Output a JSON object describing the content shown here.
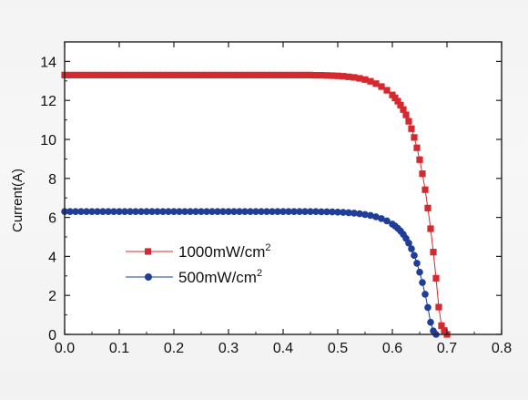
{
  "chart_data": {
    "type": "scatter",
    "title": "",
    "xlabel": "",
    "ylabel": "Current(A)",
    "xlim": [
      0.0,
      0.8
    ],
    "ylim": [
      0,
      15
    ],
    "xticks": [
      "0.0",
      "0.1",
      "0.2",
      "0.3",
      "0.4",
      "0.5",
      "0.6",
      "0.7",
      "0.8"
    ],
    "yticks": [
      "0",
      "2",
      "4",
      "6",
      "8",
      "10",
      "12",
      "14"
    ],
    "grid": false,
    "legend_position": "lower-left",
    "series": [
      {
        "name": "1000mW/cm",
        "name_sup": "2",
        "color": "#d42a2f",
        "marker": "square",
        "x": [
          0.0,
          0.01,
          0.02,
          0.03,
          0.04,
          0.05,
          0.06,
          0.07,
          0.08,
          0.09,
          0.1,
          0.11,
          0.12,
          0.13,
          0.14,
          0.15,
          0.16,
          0.17,
          0.18,
          0.19,
          0.2,
          0.21,
          0.22,
          0.23,
          0.24,
          0.25,
          0.26,
          0.27,
          0.28,
          0.29,
          0.3,
          0.31,
          0.32,
          0.33,
          0.34,
          0.35,
          0.36,
          0.37,
          0.38,
          0.39,
          0.4,
          0.41,
          0.42,
          0.43,
          0.44,
          0.45,
          0.46,
          0.47,
          0.48,
          0.49,
          0.5,
          0.51,
          0.52,
          0.53,
          0.54,
          0.55,
          0.56,
          0.57,
          0.58,
          0.59,
          0.6,
          0.605,
          0.61,
          0.615,
          0.62,
          0.625,
          0.63,
          0.635,
          0.64,
          0.645,
          0.65,
          0.655,
          0.66,
          0.665,
          0.67,
          0.675,
          0.68,
          0.685,
          0.69,
          0.695,
          0.7
        ],
        "y": [
          13.3,
          13.3,
          13.3,
          13.3,
          13.3,
          13.3,
          13.3,
          13.3,
          13.3,
          13.3,
          13.3,
          13.3,
          13.3,
          13.3,
          13.3,
          13.3,
          13.3,
          13.3,
          13.3,
          13.3,
          13.3,
          13.3,
          13.3,
          13.3,
          13.3,
          13.3,
          13.3,
          13.3,
          13.3,
          13.3,
          13.3,
          13.3,
          13.3,
          13.3,
          13.3,
          13.3,
          13.3,
          13.3,
          13.3,
          13.3,
          13.3,
          13.3,
          13.3,
          13.3,
          13.3,
          13.3,
          13.29,
          13.29,
          13.28,
          13.27,
          13.26,
          13.24,
          13.21,
          13.18,
          13.13,
          13.07,
          12.98,
          12.86,
          12.71,
          12.52,
          12.28,
          12.13,
          11.96,
          11.76,
          11.53,
          11.26,
          10.93,
          10.55,
          10.1,
          9.57,
          8.96,
          8.24,
          7.42,
          6.48,
          5.42,
          4.22,
          2.88,
          1.4,
          0.45,
          0.2,
          0.0
        ]
      },
      {
        "name": "500mW/cm",
        "name_sup": "2",
        "color": "#1f3d99",
        "marker": "circle",
        "x": [
          0.0,
          0.01,
          0.02,
          0.03,
          0.04,
          0.05,
          0.06,
          0.07,
          0.08,
          0.09,
          0.1,
          0.11,
          0.12,
          0.13,
          0.14,
          0.15,
          0.16,
          0.17,
          0.18,
          0.19,
          0.2,
          0.21,
          0.22,
          0.23,
          0.24,
          0.25,
          0.26,
          0.27,
          0.28,
          0.29,
          0.3,
          0.31,
          0.32,
          0.33,
          0.34,
          0.35,
          0.36,
          0.37,
          0.38,
          0.39,
          0.4,
          0.41,
          0.42,
          0.43,
          0.44,
          0.45,
          0.46,
          0.47,
          0.48,
          0.49,
          0.5,
          0.51,
          0.52,
          0.53,
          0.54,
          0.55,
          0.56,
          0.57,
          0.58,
          0.59,
          0.6,
          0.605,
          0.61,
          0.615,
          0.62,
          0.625,
          0.63,
          0.635,
          0.64,
          0.645,
          0.65,
          0.655,
          0.66,
          0.665,
          0.67,
          0.675,
          0.68
        ],
        "y": [
          6.3,
          6.3,
          6.3,
          6.3,
          6.3,
          6.3,
          6.3,
          6.3,
          6.3,
          6.3,
          6.3,
          6.3,
          6.3,
          6.3,
          6.3,
          6.3,
          6.3,
          6.3,
          6.3,
          6.3,
          6.3,
          6.3,
          6.3,
          6.3,
          6.3,
          6.3,
          6.3,
          6.3,
          6.3,
          6.3,
          6.3,
          6.3,
          6.3,
          6.3,
          6.3,
          6.3,
          6.3,
          6.3,
          6.3,
          6.3,
          6.3,
          6.3,
          6.3,
          6.3,
          6.3,
          6.3,
          6.3,
          6.29,
          6.29,
          6.28,
          6.27,
          6.26,
          6.24,
          6.22,
          6.19,
          6.15,
          6.1,
          6.03,
          5.94,
          5.82,
          5.66,
          5.56,
          5.44,
          5.3,
          5.13,
          4.92,
          4.68,
          4.39,
          4.05,
          3.65,
          3.19,
          2.66,
          2.06,
          1.38,
          0.62,
          0.18,
          0.0
        ]
      }
    ]
  }
}
